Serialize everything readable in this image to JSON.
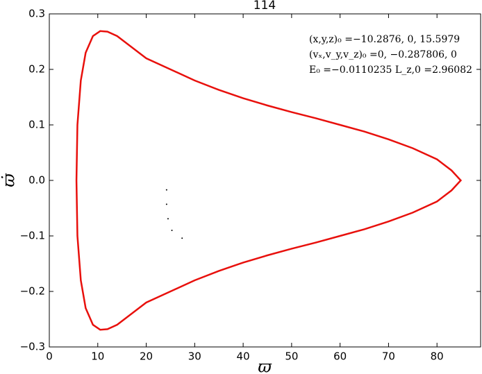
{
  "chart_data": {
    "type": "line",
    "title": "114",
    "x_label": "ϖ",
    "y_label": "ϖ̇",
    "annotations": [
      "(x,y,z)₀ =−10.2876, 0, 15.5979",
      "(vₓ,v_y,v_z)₀ =0, −0.287806, 0",
      "E₀ =−0.0110235  L_z,0 =2.96082"
    ],
    "xlim": [
      0,
      89
    ],
    "ylim": [
      -0.3,
      0.3
    ],
    "xticks": [
      0,
      10,
      20,
      30,
      40,
      50,
      60,
      70,
      80
    ],
    "yticks": [
      {
        "value": -0.3,
        "label": "−0.3"
      },
      {
        "value": -0.2,
        "label": "−0.2"
      },
      {
        "value": -0.1,
        "label": "−0.1"
      },
      {
        "value": 0,
        "label": "0.0"
      },
      0.1,
      0.2,
      0.3
    ],
    "series": [
      {
        "type": "line",
        "color": "#e8100c",
        "x": [
          5.6,
          5.8,
          6.5,
          7.5,
          9,
          10.5,
          12,
          14,
          17,
          20,
          25,
          30,
          35,
          40,
          45,
          50,
          55,
          60,
          65,
          70,
          75,
          80,
          83,
          84.9,
          83,
          80,
          75,
          70,
          65,
          60,
          55,
          50,
          45,
          40,
          35,
          30,
          25,
          20,
          17,
          14,
          12,
          10.5,
          9,
          7.5,
          6.5,
          5.8,
          5.6
        ],
        "y": [
          0,
          0.1,
          0.18,
          0.23,
          0.26,
          0.269,
          0.268,
          0.26,
          0.24,
          0.22,
          0.2,
          0.18,
          0.163,
          0.148,
          0.135,
          0.123,
          0.112,
          0.1,
          0.088,
          0.074,
          0.058,
          0.038,
          0.018,
          0,
          -0.018,
          -0.038,
          -0.058,
          -0.074,
          -0.088,
          -0.1,
          -0.112,
          -0.123,
          -0.135,
          -0.148,
          -0.163,
          -0.18,
          -0.2,
          -0.22,
          -0.24,
          -0.26,
          -0.268,
          -0.269,
          -0.26,
          -0.23,
          -0.18,
          -0.1,
          0
        ]
      },
      {
        "type": "scatter",
        "color": "#000000",
        "x": [
          24.2,
          24.2,
          24.5,
          25.3,
          27.4
        ],
        "y": [
          -0.017,
          -0.043,
          -0.069,
          -0.09,
          -0.104
        ]
      }
    ]
  }
}
